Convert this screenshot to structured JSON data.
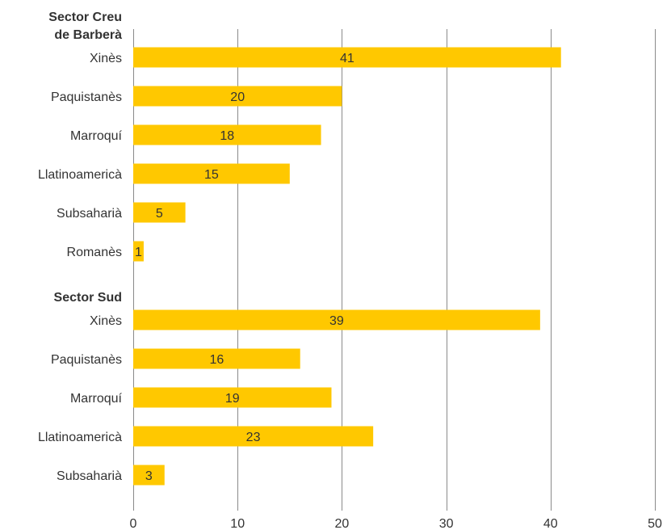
{
  "chart_data": {
    "type": "bar",
    "orientation": "horizontal",
    "title": "",
    "xlabel": "",
    "ylabel": "",
    "xlim": [
      0,
      50
    ],
    "x_ticks": [
      "0",
      "10",
      "20",
      "30",
      "40",
      "50"
    ],
    "grid": true,
    "bar_color": "#FFC800",
    "groups": [
      {
        "label_lines": [
          "Sector Creu",
          "de Barberà"
        ],
        "categories": [
          "Xinès",
          "Paquistanès",
          "Marroquí",
          "Llatinoamericà",
          "Subsaharià",
          "Romanès"
        ],
        "values": [
          41,
          20,
          18,
          15,
          5,
          1
        ]
      },
      {
        "label_lines": [
          "Sector Sud"
        ],
        "categories": [
          "Xinès",
          "Paquistanès",
          "Marroquí",
          "Llatinoamericà",
          "Subsaharià"
        ],
        "values": [
          39,
          16,
          19,
          23,
          3
        ]
      }
    ]
  }
}
